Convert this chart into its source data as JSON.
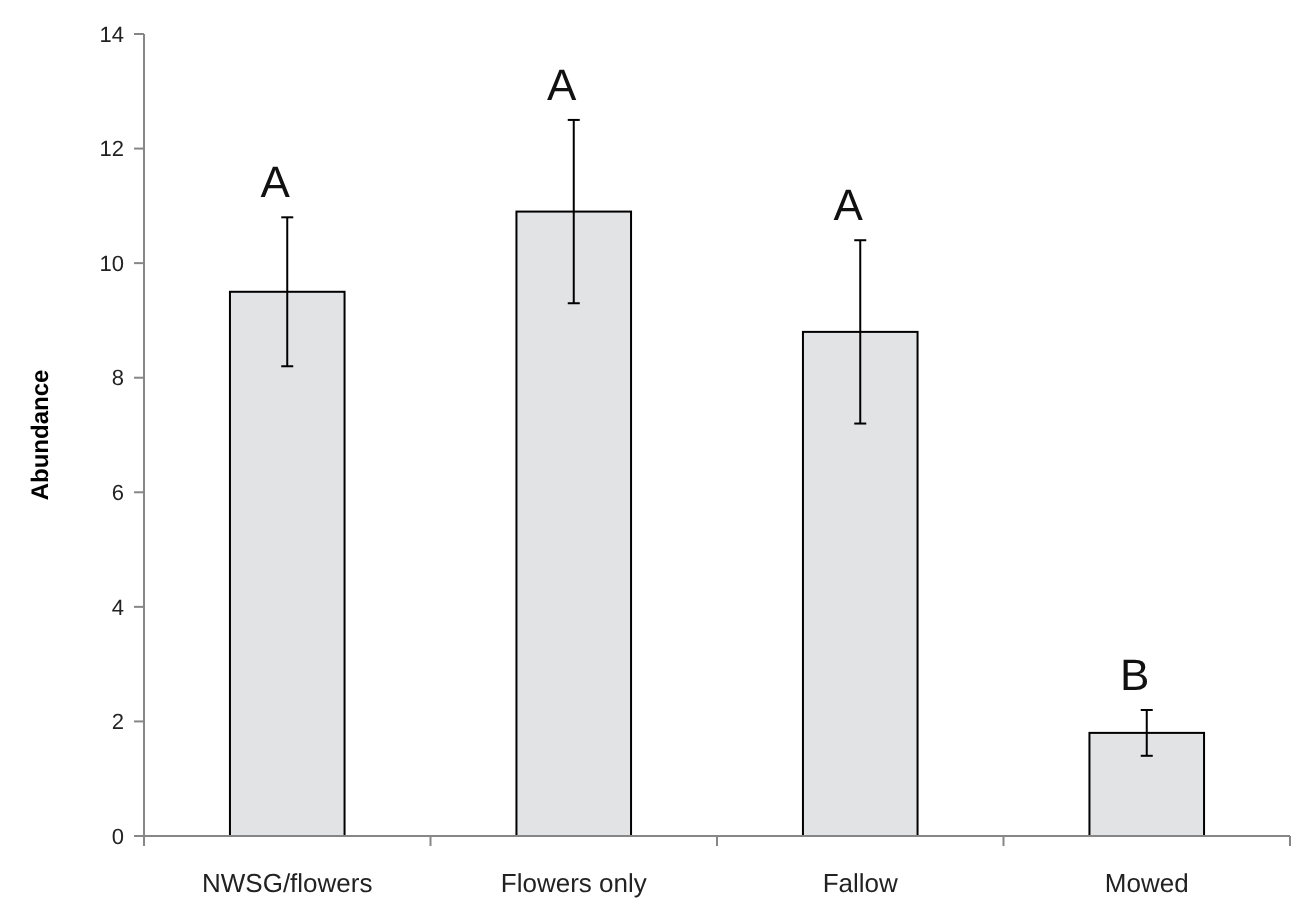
{
  "chart_data": {
    "type": "bar",
    "ylabel": "Abundance",
    "categories": [
      "NWSG/flowers",
      "Flowers only",
      "Fallow",
      "Mowed"
    ],
    "series": [
      {
        "color": "#e2e3e5",
        "values": [
          9.5,
          10.9,
          8.8,
          1.8
        ],
        "errors": [
          [
            8.2,
            10.8
          ],
          [
            9.3,
            12.5
          ],
          [
            7.2,
            10.4
          ],
          [
            1.4,
            2.2
          ]
        ]
      }
    ],
    "ylim": [
      0,
      14
    ],
    "yticks": [
      0,
      2,
      4,
      6,
      8,
      10,
      12,
      14
    ],
    "grid": false,
    "annotations": [
      {
        "text": "A",
        "x": "NWSG/flowers",
        "y": 10.8
      },
      {
        "text": "A",
        "x": "Flowers only",
        "y": 12.5
      },
      {
        "text": "A",
        "x": "Fallow",
        "y": 10.4
      },
      {
        "text": "B",
        "x": "Mowed",
        "y": 2.2
      }
    ]
  }
}
